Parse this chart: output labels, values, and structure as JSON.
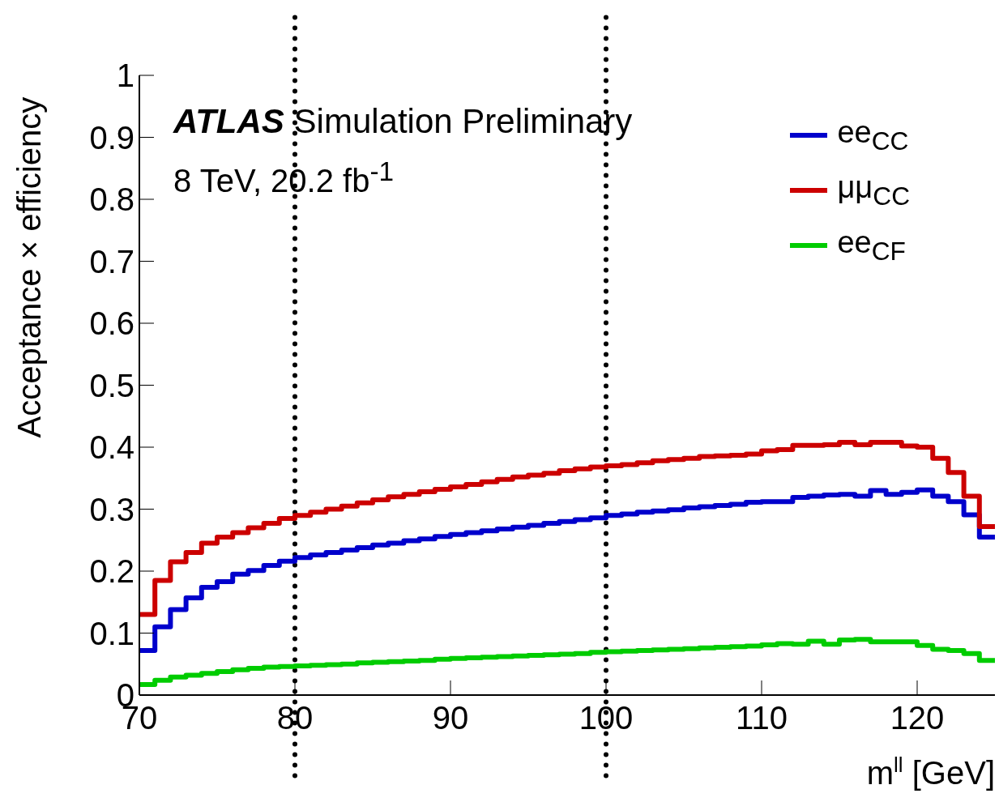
{
  "chart_data": {
    "type": "histogram",
    "title": "ATLAS Simulation Preliminary",
    "subtitle": "8 TeV, 20.2 fb$^{-1}$",
    "xlabel": "m$^{ll}$ [GeV]",
    "ylabel": "Acceptance × efficiency",
    "bins": [
      70,
      71,
      72,
      73,
      74,
      75,
      76,
      77,
      78,
      79,
      80,
      81,
      82,
      83,
      84,
      85,
      86,
      87,
      88,
      89,
      90,
      91,
      92,
      93,
      94,
      95,
      96,
      97,
      98,
      99,
      100,
      101,
      102,
      103,
      104,
      105,
      106,
      107,
      108,
      109,
      110,
      111,
      112,
      113,
      114,
      115,
      116,
      117,
      118,
      119,
      120,
      121,
      122,
      123,
      124,
      125
    ],
    "series": [
      {
        "name": "ee$_{CC}$",
        "color": "#0000cc",
        "values": [
          0.072,
          0.11,
          0.138,
          0.157,
          0.174,
          0.183,
          0.195,
          0.201,
          0.209,
          0.216,
          0.222,
          0.226,
          0.23,
          0.234,
          0.238,
          0.242,
          0.245,
          0.249,
          0.252,
          0.256,
          0.259,
          0.262,
          0.265,
          0.268,
          0.271,
          0.274,
          0.277,
          0.28,
          0.283,
          0.286,
          0.29,
          0.292,
          0.295,
          0.297,
          0.299,
          0.302,
          0.304,
          0.306,
          0.308,
          0.311,
          0.312,
          0.312,
          0.319,
          0.321,
          0.323,
          0.324,
          0.321,
          0.33,
          0.324,
          0.327,
          0.331,
          0.321,
          0.312,
          0.291,
          0.255
        ]
      },
      {
        "name": "μμ$_{CC}$",
        "color": "#cc0000",
        "values": [
          0.13,
          0.185,
          0.215,
          0.23,
          0.245,
          0.255,
          0.262,
          0.27,
          0.277,
          0.285,
          0.29,
          0.295,
          0.3,
          0.305,
          0.31,
          0.315,
          0.32,
          0.324,
          0.328,
          0.332,
          0.336,
          0.34,
          0.344,
          0.348,
          0.352,
          0.355,
          0.358,
          0.362,
          0.365,
          0.368,
          0.37,
          0.372,
          0.375,
          0.378,
          0.38,
          0.382,
          0.385,
          0.386,
          0.387,
          0.389,
          0.394,
          0.396,
          0.403,
          0.403,
          0.404,
          0.408,
          0.404,
          0.408,
          0.408,
          0.402,
          0.4,
          0.382,
          0.359,
          0.321,
          0.272
        ]
      },
      {
        "name": "ee$_{CF}$",
        "color": "#00cc00",
        "values": [
          0.017,
          0.024,
          0.029,
          0.032,
          0.035,
          0.038,
          0.041,
          0.043,
          0.045,
          0.046,
          0.047,
          0.048,
          0.049,
          0.05,
          0.052,
          0.053,
          0.054,
          0.055,
          0.056,
          0.058,
          0.059,
          0.06,
          0.061,
          0.062,
          0.063,
          0.064,
          0.065,
          0.066,
          0.067,
          0.069,
          0.07,
          0.071,
          0.072,
          0.073,
          0.074,
          0.075,
          0.076,
          0.077,
          0.078,
          0.079,
          0.081,
          0.083,
          0.082,
          0.087,
          0.082,
          0.089,
          0.09,
          0.086,
          0.086,
          0.086,
          0.08,
          0.074,
          0.072,
          0.067,
          0.056
        ]
      }
    ],
    "xlim": [
      70,
      125
    ],
    "xticks": [
      70,
      80,
      90,
      100,
      110,
      120
    ],
    "ylim": [
      0,
      1
    ],
    "yticks": [
      0,
      0.1,
      0.2,
      0.3,
      0.4,
      0.5,
      0.6,
      0.7,
      0.8,
      0.9,
      1
    ],
    "ref_lines": [
      {
        "axis": "x",
        "value": 80,
        "color": "#000000",
        "line_style": "dotted"
      },
      {
        "axis": "x",
        "value": 100,
        "color": "#000000",
        "line_style": "dotted"
      }
    ],
    "legend": "top right",
    "marker": "none",
    "line_style": "solid"
  }
}
